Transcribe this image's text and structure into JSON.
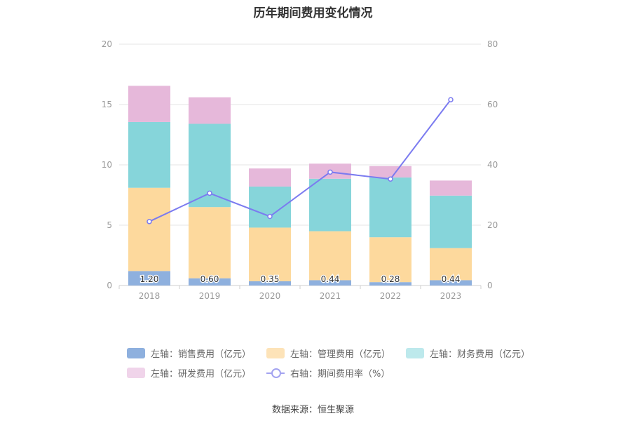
{
  "title": "历年期间费用变化情况",
  "source": "数据来源：恒生聚源",
  "chart_data": {
    "type": "bar",
    "stacked": true,
    "categories": [
      "2018",
      "2019",
      "2020",
      "2021",
      "2022",
      "2023"
    ],
    "y_left": {
      "ylim": [
        0,
        20
      ],
      "ticks": [
        "0",
        "5",
        "10",
        "15",
        "20"
      ]
    },
    "y_right": {
      "ylim": [
        0,
        80
      ],
      "ticks": [
        "0",
        "20",
        "40",
        "60",
        "80"
      ]
    },
    "series": [
      {
        "name": "左轴：销售费用（亿元）",
        "color": "#8eb0de",
        "values": [
          1.2,
          0.6,
          0.35,
          0.44,
          0.28,
          0.44
        ],
        "labels": [
          "1.20",
          "0.60",
          "0.35",
          "0.44",
          "0.28",
          "0.44"
        ]
      },
      {
        "name": "左轴：管理费用（亿元）",
        "color": "#fdd99d",
        "values": [
          6.9,
          5.9,
          4.45,
          4.06,
          3.72,
          2.66
        ]
      },
      {
        "name": "左轴：财务费用（亿元）",
        "color": "#86d5da",
        "values": [
          5.45,
          6.9,
          3.4,
          4.35,
          4.95,
          4.35
        ]
      },
      {
        "name": "左轴：研发费用（亿元）",
        "color": "#e6b8da",
        "values": [
          3.0,
          2.2,
          1.5,
          1.25,
          0.95,
          1.25
        ]
      }
    ],
    "line_series": {
      "name": "右轴：期间费用率（%）",
      "color": "#7b7bf0",
      "axis": "right",
      "values": [
        21.2,
        30.6,
        22.9,
        37.6,
        35.3,
        61.6
      ]
    },
    "grid": true,
    "legend_position": "bottom"
  },
  "legend": {
    "row1": [
      "左轴：销售费用（亿元）",
      "左轴：管理费用（亿元）",
      "左轴：财务费用（亿元）"
    ],
    "row2": [
      "左轴：研发费用（亿元）",
      "右轴：期间费用率（%）"
    ],
    "swatch_colors": [
      "#8eb0de",
      "#fde3b8",
      "#bde9ec",
      "#f0d4ea"
    ]
  }
}
